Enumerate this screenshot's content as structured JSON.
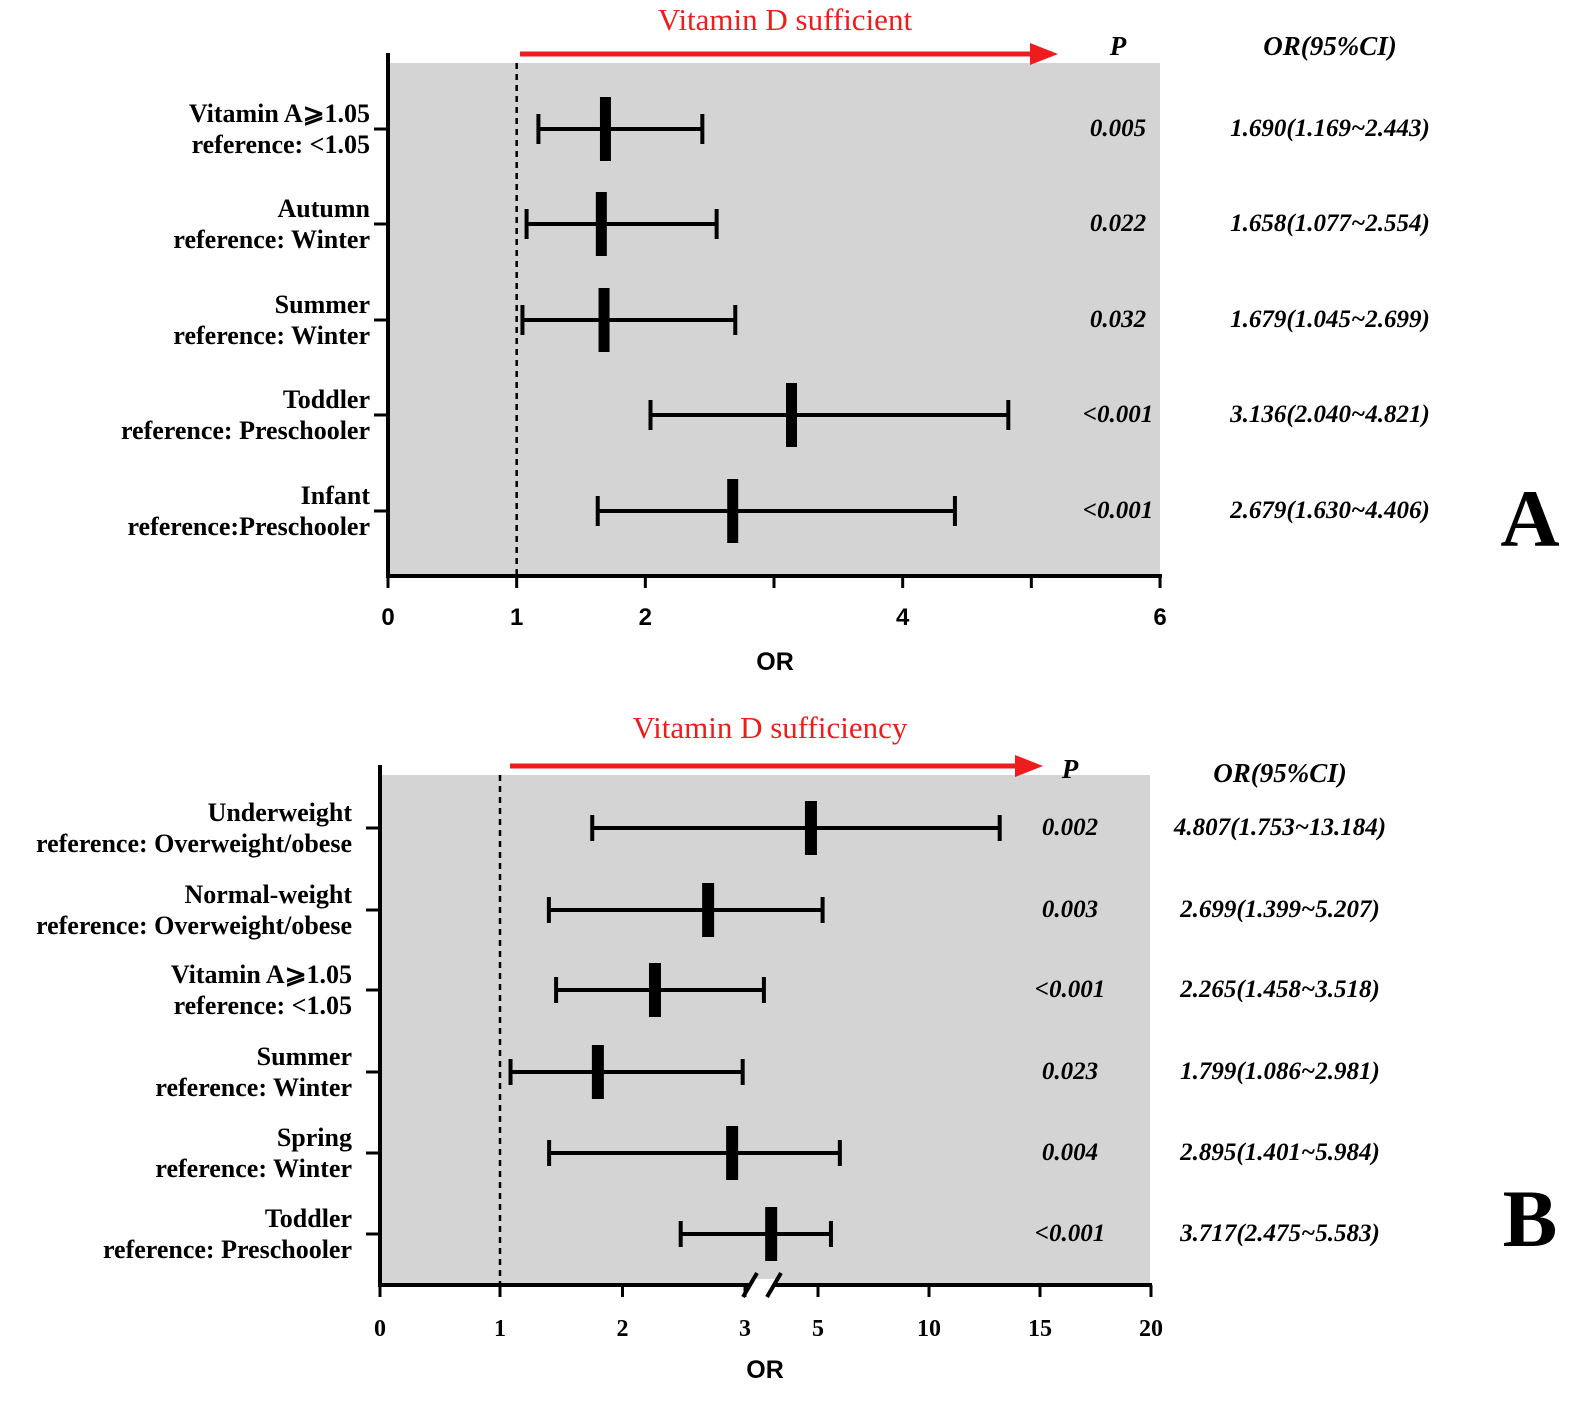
{
  "colors": {
    "accent": "#ee1c1c",
    "plot_bg": "#d4d4d4",
    "ink": "#000000"
  },
  "chart_data": [
    {
      "type": "forest",
      "panel": "A",
      "title": "Vitamin D sufficient",
      "xlabel": "OR",
      "p_header": "P",
      "or_header": "OR(95%CI)",
      "reference_line": 1,
      "xlim": [
        0,
        6
      ],
      "ticks": [
        {
          "label": "0",
          "value": 0
        },
        {
          "label": "1",
          "value": 1
        },
        {
          "label": "2",
          "value": 2
        },
        {
          "label": "4",
          "value": 4
        },
        {
          "label": "6",
          "value": 6
        }
      ],
      "rows": [
        {
          "line1": "Vitamin A⩾1.05",
          "line2": "reference: ˂1.05",
          "or": 1.69,
          "lo": 1.169,
          "hi": 2.443,
          "p": "0.005",
          "ci": "1.690(1.169~2.443)"
        },
        {
          "line1": "Autumn",
          "line2": "reference: Winter",
          "or": 1.658,
          "lo": 1.077,
          "hi": 2.554,
          "p": "0.022",
          "ci": "1.658(1.077~2.554)"
        },
        {
          "line1": "Summer",
          "line2": "reference: Winter",
          "or": 1.679,
          "lo": 1.045,
          "hi": 2.699,
          "p": "0.032",
          "ci": "1.679(1.045~2.699)"
        },
        {
          "line1": "Toddler",
          "line2": "reference: Preschooler",
          "or": 3.136,
          "lo": 2.04,
          "hi": 4.821,
          "p": "˂0.001",
          "ci": "3.136(2.040~4.821)"
        },
        {
          "line1": "Infant",
          "line2": "reference:Preschooler",
          "or": 2.679,
          "lo": 1.63,
          "hi": 4.406,
          "p": "˂0.001",
          "ci": "2.679(1.630~4.406)"
        }
      ]
    },
    {
      "type": "forest",
      "panel": "B",
      "title": "Vitamin D sufficiency",
      "xlabel": "OR",
      "p_header": "P",
      "or_header": "OR(95%CI)",
      "reference_line": 1,
      "axis_break": [
        3,
        5
      ],
      "xlim": [
        0,
        20
      ],
      "ticks": [
        {
          "label": "0",
          "value": 0
        },
        {
          "label": "1",
          "value": 1
        },
        {
          "label": "2",
          "value": 2
        },
        {
          "label": "3",
          "value": 3
        },
        {
          "label": "5",
          "value": 5
        },
        {
          "label": "10",
          "value": 10
        },
        {
          "label": "15",
          "value": 15
        },
        {
          "label": "20",
          "value": 20
        }
      ],
      "rows": [
        {
          "line1": "Underweight",
          "line2": "reference: Overweight/obese",
          "or": 4.807,
          "lo": 1.753,
          "hi": 13.184,
          "p": "0.002",
          "ci": "4.807(1.753~13.184)"
        },
        {
          "line1": "Normal-weight",
          "line2": "reference: Overweight/obese",
          "or": 2.699,
          "lo": 1.399,
          "hi": 5.207,
          "p": "0.003",
          "ci": "2.699(1.399~5.207)"
        },
        {
          "line1": "Vitamin A⩾1.05",
          "line2": "reference: ˂1.05",
          "or": 2.265,
          "lo": 1.458,
          "hi": 3.518,
          "p": "˂0.001",
          "ci": "2.265(1.458~3.518)"
        },
        {
          "line1": "Summer",
          "line2": "reference: Winter",
          "or": 1.799,
          "lo": 1.086,
          "hi": 2.981,
          "p": "0.023",
          "ci": "1.799(1.086~2.981)"
        },
        {
          "line1": "Spring",
          "line2": "reference: Winter",
          "or": 2.895,
          "lo": 1.401,
          "hi": 5.984,
          "p": "0.004",
          "ci": "2.895(1.401~5.984)"
        },
        {
          "line1": "Toddler",
          "line2": "reference: Preschooler",
          "or": 3.717,
          "lo": 2.475,
          "hi": 5.583,
          "p": "˂0.001",
          "ci": "3.717(2.475~5.583)"
        }
      ]
    }
  ]
}
